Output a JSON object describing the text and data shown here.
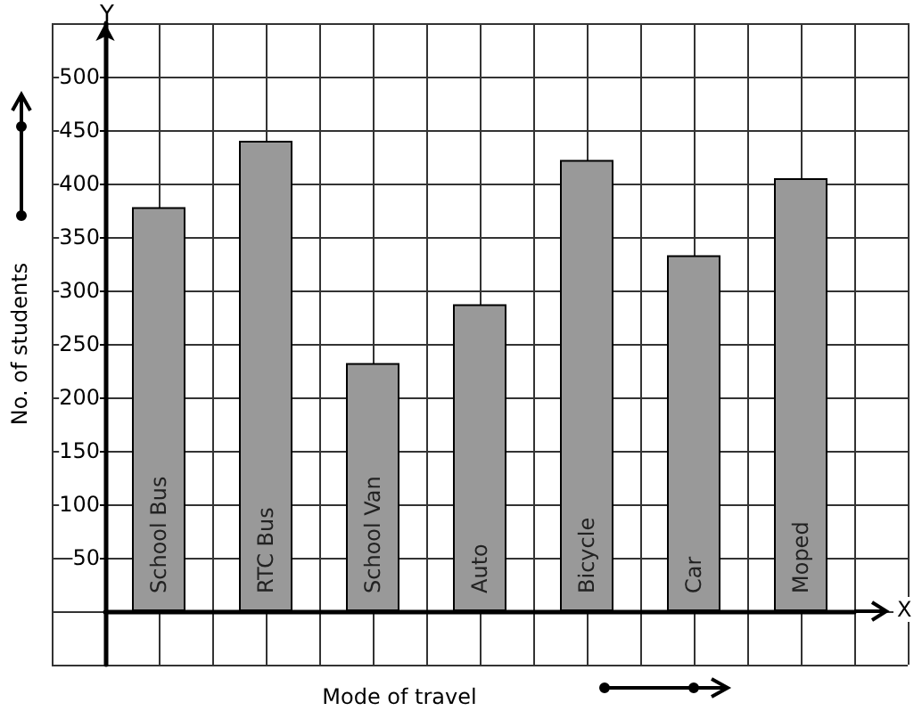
{
  "chart_data": {
    "type": "bar",
    "xlabel": "Mode of travel",
    "ylabel": "No. of students",
    "categories": [
      "School Bus",
      "RTC Bus",
      "School Van",
      "Auto",
      "Bicycle",
      "Car",
      "Moped"
    ],
    "values": [
      378,
      440,
      232,
      287,
      422,
      333,
      405
    ],
    "color": "#999999",
    "ylim": [
      -50,
      550
    ],
    "yticks": [
      50,
      100,
      150,
      200,
      250,
      300,
      350,
      400,
      450,
      500
    ],
    "grid": true,
    "annotations": [
      "Y",
      "X"
    ]
  }
}
